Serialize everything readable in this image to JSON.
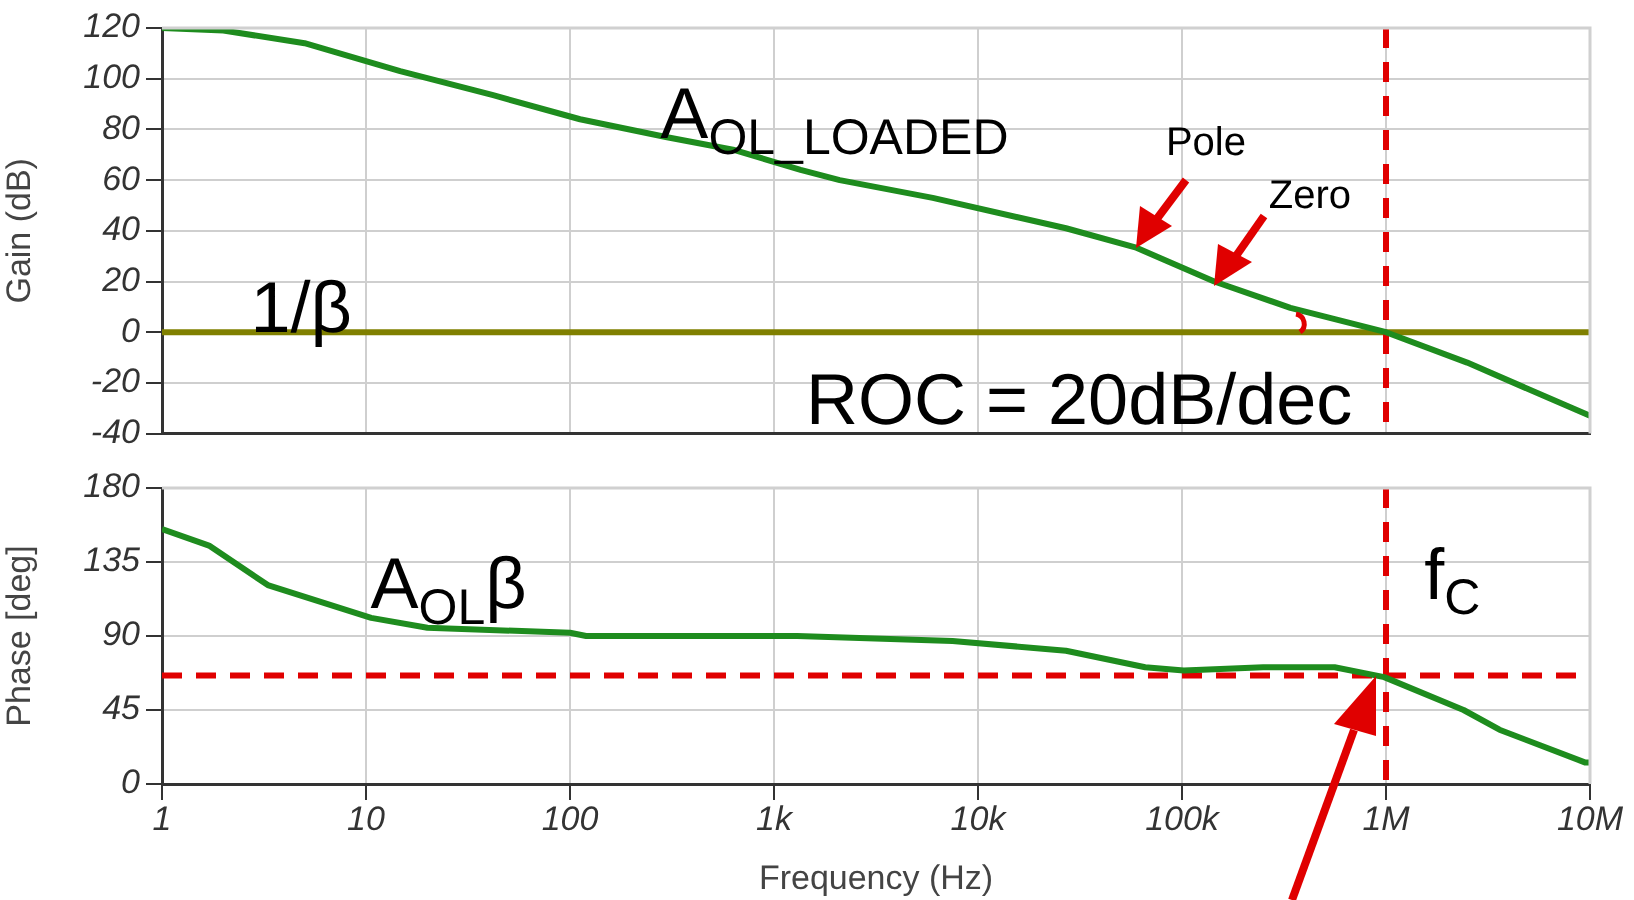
{
  "chart_data": [
    {
      "type": "line",
      "ylabel": "Gain (dB)",
      "log": "x",
      "xlim": [
        1,
        10000000
      ],
      "ylim": [
        -40,
        120
      ],
      "xticks": [
        1,
        10,
        100,
        1000,
        10000,
        100000,
        1000000,
        10000000
      ],
      "yticks": [
        -40,
        -20,
        0,
        20,
        40,
        60,
        80,
        100,
        120
      ],
      "tick_labels": "y",
      "grid": true,
      "legend": false,
      "line_style": "solid",
      "marker": "none",
      "series": [
        {
          "color": "#1e8c1e",
          "x": [
            1,
            2,
            5,
            14.7,
            42,
            112,
            295,
            630,
            1350,
            2100,
            6000,
            27000,
            59000,
            144000,
            340000,
            1000000,
            2500000,
            10000000
          ],
          "values": [
            120,
            119,
            114,
            103,
            93.5,
            84,
            77,
            72,
            64,
            60,
            53,
            41,
            33.5,
            20,
            9.6,
            0,
            -12,
            -33
          ]
        }
      ],
      "ref_lines": [
        {
          "axis": "y",
          "value": 0,
          "color": "#808000",
          "line_style": "solid"
        },
        {
          "axis": "x",
          "value": 1000000,
          "color": "#e00000",
          "line_style": "dashed"
        }
      ],
      "annotations": [
        "A$_{OL_LOADED}$",
        "Pole",
        "Zero",
        "1/β",
        "ROC = 20dB/dec"
      ]
    },
    {
      "type": "line",
      "xlabel": "Frequency (Hz)",
      "ylabel": "Phase [deg]",
      "log": "x",
      "xlim": [
        1,
        10000000
      ],
      "ylim": [
        0,
        180
      ],
      "xticks": [
        {
          "value": 1,
          "label": "1"
        },
        {
          "value": 10,
          "label": "10"
        },
        {
          "value": 100,
          "label": "100"
        },
        {
          "value": 1000,
          "label": "1k"
        },
        {
          "value": 10000,
          "label": "10k"
        },
        {
          "value": 100000,
          "label": "100k"
        },
        {
          "value": 1000000,
          "label": "1M"
        },
        {
          "value": 10000000,
          "label": "10M"
        }
      ],
      "yticks": [
        0,
        45,
        90,
        135,
        180
      ],
      "grid": true,
      "legend": false,
      "line_style": "solid",
      "marker": "none",
      "series": [
        {
          "color": "#1e8c1e",
          "x": [
            1,
            1.7,
            3.3,
            10.6,
            20,
            100,
            120,
            1300,
            7500,
            27000,
            66000,
            102000,
            250000,
            560000,
            980000,
            2400000,
            3600000,
            9500000,
            10000000
          ],
          "values": [
            155,
            145,
            121,
            101,
            95,
            92,
            90,
            90,
            87,
            81,
            71,
            69,
            71,
            71,
            65,
            45,
            33,
            13,
            13
          ]
        }
      ],
      "ref_lines": [
        {
          "axis": "y",
          "value": 66,
          "color": "#e00000",
          "line_style": "dashed"
        },
        {
          "axis": "x",
          "value": 1000000,
          "color": "#e00000",
          "line_style": "dashed"
        }
      ],
      "annotations": [
        "A$_{OL}$β",
        "f$_{C}$"
      ]
    }
  ]
}
